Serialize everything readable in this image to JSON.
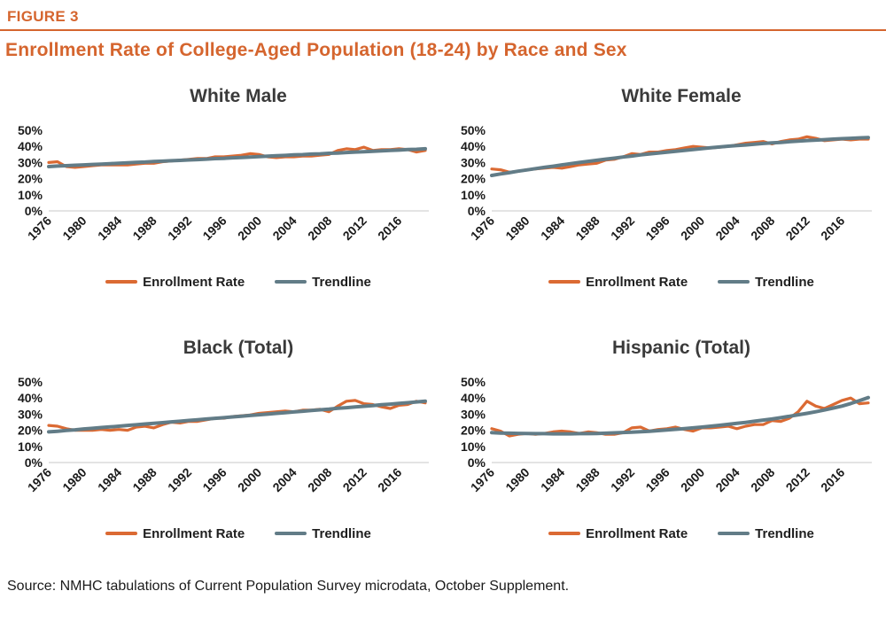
{
  "figure_label": "FIGURE 3",
  "title": "Enrollment Rate of College-Aged Population (18-24) by Race and Sex",
  "source": "Source: NMHC tabulations of Current Population Survey microdata, October Supplement.",
  "legend": {
    "enrollment_label": "Enrollment Rate",
    "trendline_label": "Trendline"
  },
  "colors": {
    "accent_orange": "#D5652E",
    "enrollment_line": "#DB6A33",
    "trendline": "#627C87",
    "baseline": "#DCDCDC",
    "chart_title_text": "#3a3a3a",
    "axis_text": "#1a1a1a"
  },
  "chart_data": [
    {
      "type": "line",
      "title": "White Male",
      "ylim": [
        0,
        50
      ],
      "yticks": [
        "0%",
        "10%",
        "20%",
        "30%",
        "40%",
        "50%"
      ],
      "xticks": [
        1976,
        1980,
        1984,
        1988,
        1992,
        1996,
        2000,
        2004,
        2008,
        2012,
        2016
      ],
      "x": [
        1976,
        1977,
        1978,
        1979,
        1980,
        1981,
        1982,
        1983,
        1984,
        1985,
        1986,
        1987,
        1988,
        1989,
        1990,
        1991,
        1992,
        1993,
        1994,
        1995,
        1996,
        1997,
        1998,
        1999,
        2000,
        2001,
        2002,
        2003,
        2004,
        2005,
        2006,
        2007,
        2008,
        2009,
        2010,
        2011,
        2012,
        2013,
        2014,
        2015,
        2016,
        2017,
        2018,
        2019
      ],
      "series": [
        {
          "name": "Enrollment Rate",
          "values": [
            30.0,
            30.5,
            27.5,
            27.0,
            27.5,
            28.0,
            28.5,
            28.5,
            28.5,
            28.5,
            29.0,
            29.5,
            29.5,
            30.5,
            31.0,
            31.5,
            32.0,
            32.5,
            32.5,
            33.5,
            33.5,
            34.0,
            34.5,
            35.5,
            35.0,
            33.5,
            33.0,
            33.5,
            33.5,
            34.0,
            34.0,
            34.5,
            35.0,
            37.5,
            38.5,
            38.0,
            39.5,
            37.5,
            38.0,
            38.0,
            38.5,
            38.0,
            36.5,
            37.5
          ]
        },
        {
          "name": "Trendline",
          "values": [
            27.5,
            27.8,
            28.0,
            28.3,
            28.5,
            28.8,
            29.0,
            29.3,
            29.5,
            29.8,
            30.1,
            30.3,
            30.6,
            30.8,
            31.1,
            31.3,
            31.6,
            31.8,
            32.1,
            32.4,
            32.6,
            32.9,
            33.1,
            33.4,
            33.6,
            33.9,
            34.2,
            34.4,
            34.7,
            34.9,
            35.2,
            35.4,
            35.7,
            35.9,
            36.2,
            36.5,
            36.7,
            37.0,
            37.2,
            37.5,
            37.7,
            38.0,
            38.2,
            38.5
          ]
        }
      ]
    },
    {
      "type": "line",
      "title": "White Female",
      "ylim": [
        0,
        50
      ],
      "yticks": [
        "0%",
        "10%",
        "20%",
        "30%",
        "40%",
        "50%"
      ],
      "xticks": [
        1976,
        1980,
        1984,
        1988,
        1992,
        1996,
        2000,
        2004,
        2008,
        2012,
        2016
      ],
      "x": [
        1976,
        1977,
        1978,
        1979,
        1980,
        1981,
        1982,
        1983,
        1984,
        1985,
        1986,
        1987,
        1988,
        1989,
        1990,
        1991,
        1992,
        1993,
        1994,
        1995,
        1996,
        1997,
        1998,
        1999,
        2000,
        2001,
        2002,
        2003,
        2004,
        2005,
        2006,
        2007,
        2008,
        2009,
        2010,
        2011,
        2012,
        2013,
        2014,
        2015,
        2016,
        2017,
        2018,
        2019
      ],
      "series": [
        {
          "name": "Enrollment Rate",
          "values": [
            26.0,
            25.5,
            24.0,
            24.5,
            25.5,
            26.0,
            26.5,
            27.0,
            26.5,
            27.5,
            28.5,
            29.0,
            29.5,
            31.5,
            32.0,
            33.5,
            35.5,
            35.0,
            36.5,
            36.5,
            37.5,
            38.0,
            39.0,
            40.0,
            39.5,
            39.0,
            39.5,
            40.0,
            41.0,
            42.0,
            42.5,
            43.0,
            41.5,
            43.0,
            44.0,
            44.5,
            46.0,
            45.0,
            43.5,
            44.0,
            44.5,
            44.0,
            44.5,
            44.5
          ]
        },
        {
          "name": "Trendline",
          "values": [
            22.0,
            22.9,
            23.7,
            24.6,
            25.4,
            26.2,
            27.0,
            27.7,
            28.5,
            29.3,
            30.0,
            30.7,
            31.4,
            32.1,
            32.7,
            33.4,
            34.0,
            34.7,
            35.3,
            35.9,
            36.4,
            37.0,
            37.5,
            38.1,
            38.6,
            39.1,
            39.6,
            40.1,
            40.5,
            40.9,
            41.4,
            41.8,
            42.2,
            42.5,
            42.9,
            43.3,
            43.6,
            43.9,
            44.2,
            44.5,
            44.8,
            45.0,
            45.3,
            45.5
          ]
        }
      ]
    },
    {
      "type": "line",
      "title": "Black (Total)",
      "ylim": [
        0,
        50
      ],
      "yticks": [
        "0%",
        "10%",
        "20%",
        "30%",
        "40%",
        "50%"
      ],
      "xticks": [
        1976,
        1980,
        1984,
        1988,
        1992,
        1996,
        2000,
        2004,
        2008,
        2012,
        2016
      ],
      "x": [
        1976,
        1977,
        1978,
        1979,
        1980,
        1981,
        1982,
        1983,
        1984,
        1985,
        1986,
        1987,
        1988,
        1989,
        1990,
        1991,
        1992,
        1993,
        1994,
        1995,
        1996,
        1997,
        1998,
        1999,
        2000,
        2001,
        2002,
        2003,
        2004,
        2005,
        2006,
        2007,
        2008,
        2009,
        2010,
        2011,
        2012,
        2013,
        2014,
        2015,
        2016,
        2017,
        2018,
        2019
      ],
      "series": [
        {
          "name": "Enrollment Rate",
          "values": [
            23.0,
            22.5,
            21.0,
            20.0,
            20.0,
            20.0,
            20.5,
            20.0,
            20.5,
            20.0,
            22.0,
            22.5,
            21.5,
            23.5,
            25.0,
            24.5,
            25.5,
            25.5,
            26.5,
            27.5,
            27.5,
            28.5,
            29.0,
            29.5,
            30.5,
            31.0,
            31.5,
            32.0,
            31.5,
            32.5,
            32.5,
            33.0,
            31.5,
            35.0,
            38.0,
            38.5,
            36.5,
            36.0,
            34.5,
            33.5,
            35.5,
            36.0,
            38.0,
            37.0
          ]
        },
        {
          "name": "Trendline",
          "values": [
            19.0,
            19.4,
            19.9,
            20.3,
            20.8,
            21.2,
            21.7,
            22.1,
            22.5,
            23.0,
            23.4,
            23.9,
            24.3,
            24.7,
            25.2,
            25.6,
            26.1,
            26.5,
            27.0,
            27.4,
            27.8,
            28.3,
            28.7,
            29.2,
            29.6,
            30.0,
            30.5,
            30.9,
            31.4,
            31.8,
            32.3,
            32.7,
            33.1,
            33.6,
            34.0,
            34.5,
            34.9,
            35.3,
            35.8,
            36.2,
            36.7,
            37.1,
            37.6,
            38.0
          ]
        }
      ]
    },
    {
      "type": "line",
      "title": "Hispanic (Total)",
      "ylim": [
        0,
        50
      ],
      "yticks": [
        "0%",
        "10%",
        "20%",
        "30%",
        "40%",
        "50%"
      ],
      "xticks": [
        1976,
        1980,
        1984,
        1988,
        1992,
        1996,
        2000,
        2004,
        2008,
        2012,
        2016
      ],
      "x": [
        1976,
        1977,
        1978,
        1979,
        1980,
        1981,
        1982,
        1983,
        1984,
        1985,
        1986,
        1987,
        1988,
        1989,
        1990,
        1991,
        1992,
        1993,
        1994,
        1995,
        1996,
        1997,
        1998,
        1999,
        2000,
        2001,
        2002,
        2003,
        2004,
        2005,
        2006,
        2007,
        2008,
        2009,
        2010,
        2011,
        2012,
        2013,
        2014,
        2015,
        2016,
        2017,
        2018,
        2019
      ],
      "series": [
        {
          "name": "Enrollment Rate",
          "values": [
            21.0,
            19.5,
            16.5,
            17.5,
            18.0,
            17.5,
            18.0,
            19.0,
            19.5,
            19.0,
            18.0,
            19.0,
            18.5,
            17.5,
            17.5,
            18.5,
            21.5,
            22.0,
            19.5,
            20.5,
            21.0,
            22.0,
            20.5,
            19.5,
            21.5,
            21.5,
            22.0,
            22.5,
            21.0,
            22.5,
            23.5,
            23.5,
            26.0,
            25.5,
            27.5,
            31.5,
            38.0,
            35.0,
            33.5,
            36.0,
            38.5,
            40.0,
            36.5,
            37.0
          ]
        },
        {
          "name": "Trendline",
          "values": [
            18.5,
            18.3,
            18.2,
            18.1,
            18.0,
            17.9,
            17.9,
            17.8,
            17.8,
            17.8,
            17.9,
            17.9,
            18.0,
            18.2,
            18.4,
            18.6,
            18.8,
            19.1,
            19.4,
            19.8,
            20.2,
            20.6,
            21.0,
            21.5,
            22.0,
            22.5,
            23.1,
            23.7,
            24.3,
            24.9,
            25.6,
            26.3,
            27.0,
            27.8,
            28.7,
            29.6,
            30.5,
            31.5,
            32.6,
            33.8,
            35.0,
            36.6,
            38.4,
            40.3
          ]
        }
      ]
    }
  ]
}
